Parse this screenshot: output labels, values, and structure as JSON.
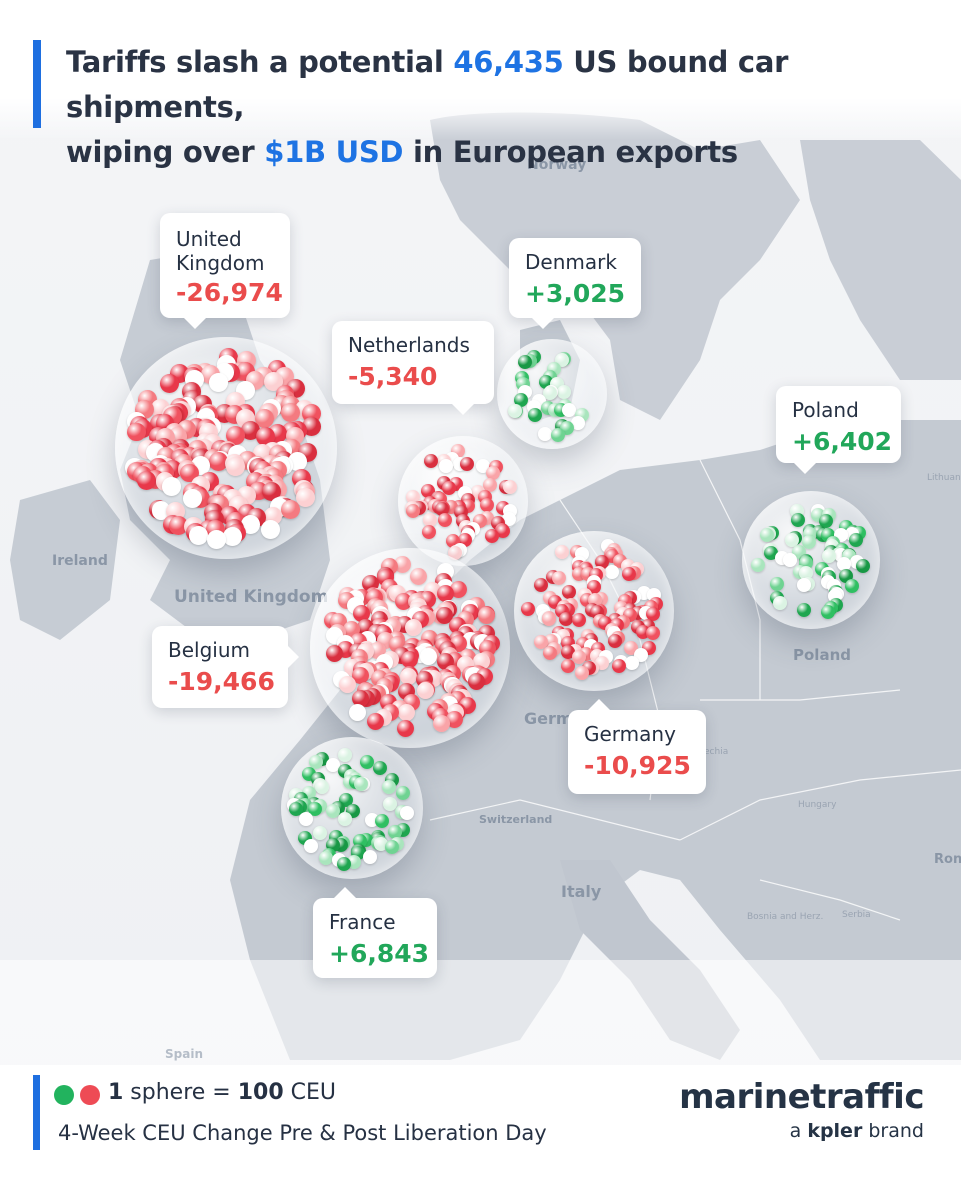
{
  "headline": {
    "part1": "Tariffs slash a potential ",
    "shipments": "46,435",
    "part2": " US bound car shipments,",
    "part3": "wiping over ",
    "usd": "$1B USD",
    "part4": " in European exports"
  },
  "map_labels": {
    "norway": "Norway",
    "ireland": "Ireland",
    "united_kingdom": "United Kingdom",
    "poland": "Poland",
    "germany": "Germ",
    "czechia": "Czechia",
    "switzerland": "Switzerland",
    "italy": "Italy",
    "hungary": "Hungary",
    "bosnia": "Bosnia and Herz.",
    "serbia": "Serbia",
    "romania": "Ron",
    "lithuania": "Lithuania",
    "spain": "Spain"
  },
  "countries": [
    {
      "name": "United Kingdom",
      "line1": "United",
      "line2": "Kingdom",
      "value": "-26,974",
      "change": -26974,
      "sign": "neg"
    },
    {
      "name": "Denmark",
      "value": "+3,025",
      "change": 3025,
      "sign": "pos"
    },
    {
      "name": "Netherlands",
      "value": "-5,340",
      "change": -5340,
      "sign": "neg"
    },
    {
      "name": "Poland",
      "value": "+6,402",
      "change": 6402,
      "sign": "pos"
    },
    {
      "name": "Belgium",
      "value": "-19,466",
      "change": -19466,
      "sign": "neg"
    },
    {
      "name": "Germany",
      "value": "-10,925",
      "change": -10925,
      "sign": "neg"
    },
    {
      "name": "France",
      "value": "+6,843",
      "change": 6843,
      "sign": "pos"
    }
  ],
  "legend": {
    "count": "1",
    "sphere_text": " sphere = ",
    "ceu_value": "100",
    "ceu_unit": " CEU",
    "subtitle": "4-Week CEU Change Pre & Post Liberation Day"
  },
  "brand": {
    "name": "marinetraffic",
    "sub_prefix": "a ",
    "sub_brand": "kpler",
    "sub_suffix": " brand"
  },
  "colors": {
    "accent": "#1e6fe0",
    "negative": "#ea4c4c",
    "positive": "#21a75a",
    "legend_green": "#22b35e",
    "legend_red": "#ee4b55"
  }
}
